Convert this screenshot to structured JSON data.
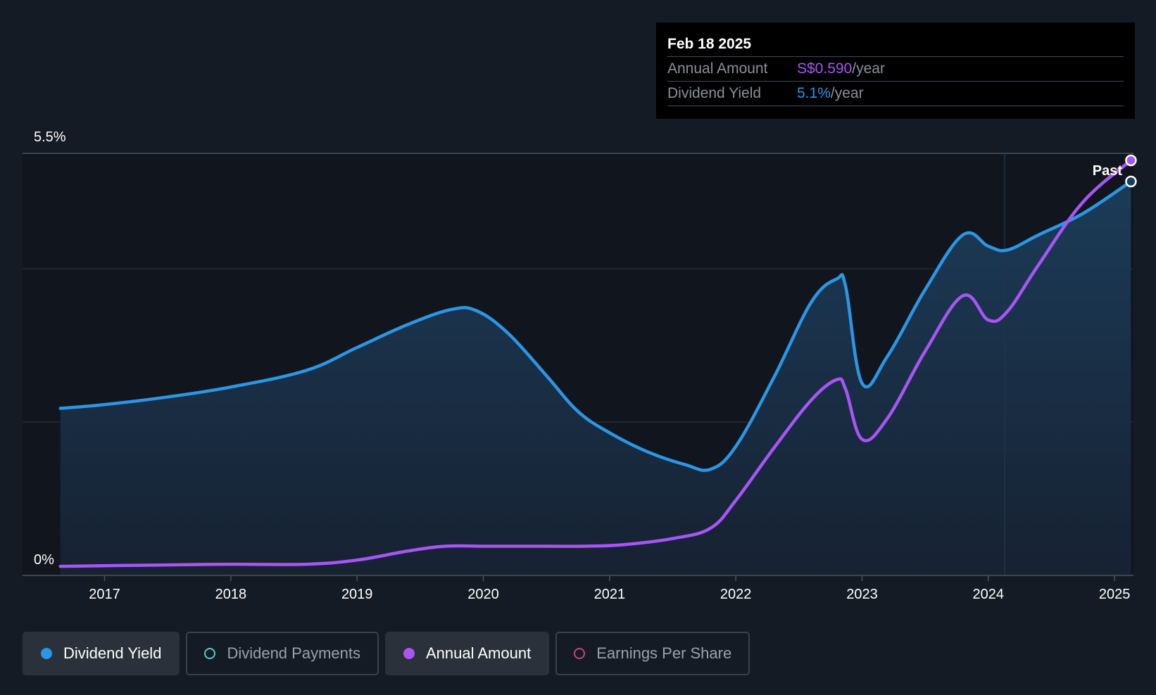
{
  "tooltip": {
    "date": "Feb 18 2025",
    "annual_label": "Annual Amount",
    "annual_value": "S$0.590",
    "annual_unit": "/year",
    "yield_label": "Dividend Yield",
    "yield_value": "5.1%",
    "yield_unit": "/year"
  },
  "past_label": "Past",
  "legend": [
    {
      "label": "Dividend Yield",
      "color": "#2b96e6",
      "active": true,
      "filled": true
    },
    {
      "label": "Dividend Payments",
      "color": "#5ec8c0",
      "active": false,
      "filled": false
    },
    {
      "label": "Annual Amount",
      "color": "#a855f7",
      "active": true,
      "filled": true
    },
    {
      "label": "Earnings Per Share",
      "color": "#c2457f",
      "active": false,
      "filled": false
    }
  ],
  "colors": {
    "yield": "#2b96e6",
    "annual": "#a855f7",
    "background": "#151b24"
  },
  "chart_data": {
    "type": "line",
    "title": "",
    "ylim": [
      0,
      5.5
    ],
    "y_tick_labels": [
      "5.5%",
      "0%"
    ],
    "x_tick_labels": [
      "2017",
      "2018",
      "2019",
      "2020",
      "2021",
      "2022",
      "2023",
      "2024",
      "2025"
    ],
    "xlim": [
      2016.35,
      2025.15
    ],
    "series": [
      {
        "name": "Dividend Yield",
        "unit": "%",
        "x": [
          2016.65,
          2017.0,
          2017.5,
          2018.0,
          2018.6,
          2019.0,
          2019.4,
          2019.75,
          2019.95,
          2020.2,
          2020.5,
          2020.75,
          2021.0,
          2021.3,
          2021.6,
          2021.8,
          2022.0,
          2022.3,
          2022.6,
          2022.8,
          2022.87,
          2023.0,
          2023.2,
          2023.5,
          2023.8,
          2024.0,
          2024.15,
          2024.4,
          2024.75,
          2025.13
        ],
        "values": [
          2.12,
          2.17,
          2.27,
          2.4,
          2.62,
          2.92,
          3.22,
          3.42,
          3.4,
          3.1,
          2.55,
          2.08,
          1.8,
          1.55,
          1.38,
          1.32,
          1.62,
          2.52,
          3.52,
          3.82,
          3.72,
          2.45,
          2.8,
          3.68,
          4.4,
          4.25,
          4.2,
          4.4,
          4.68,
          5.1
        ]
      },
      {
        "name": "Annual Amount",
        "unit": "S$",
        "x": [
          2016.65,
          2017.5,
          2018.0,
          2018.6,
          2019.0,
          2019.4,
          2019.7,
          2020.0,
          2020.5,
          2020.8,
          2021.1,
          2021.5,
          2021.8,
          2022.0,
          2022.3,
          2022.6,
          2022.8,
          2022.87,
          2023.0,
          2023.2,
          2023.5,
          2023.8,
          2024.0,
          2024.15,
          2024.4,
          2024.75,
          2025.13
        ],
        "values": [
          0.005,
          0.007,
          0.008,
          0.008,
          0.014,
          0.027,
          0.034,
          0.034,
          0.034,
          0.034,
          0.036,
          0.045,
          0.06,
          0.1,
          0.175,
          0.245,
          0.274,
          0.26,
          0.188,
          0.218,
          0.315,
          0.395,
          0.36,
          0.372,
          0.44,
          0.53,
          0.59
        ]
      }
    ],
    "highlight_region_start": 2024.13,
    "legend": [
      "Dividend Yield",
      "Dividend Payments",
      "Annual Amount",
      "Earnings Per Share"
    ]
  }
}
